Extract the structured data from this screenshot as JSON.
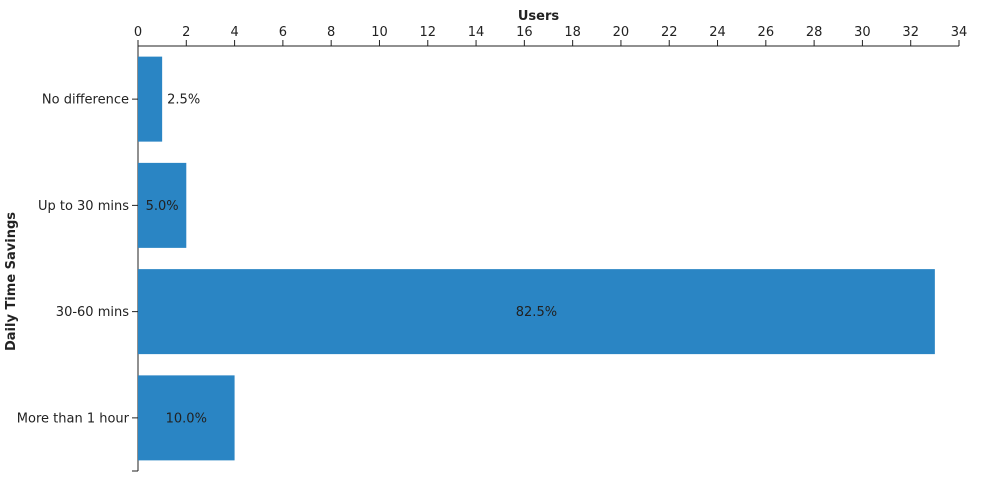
{
  "chart_data": {
    "type": "bar",
    "orientation": "horizontal",
    "categories": [
      "No difference",
      "Up to 30 mins",
      "30-60 mins",
      "More than 1 hour"
    ],
    "values": [
      1,
      2,
      33,
      4
    ],
    "data_labels": [
      "2.5%",
      "5.0%",
      "82.5%",
      "10.0%"
    ],
    "xlabel": "Users",
    "ylabel": "Daily Time Savings",
    "xlim": [
      0,
      34
    ],
    "x_ticks": [
      0,
      2,
      4,
      6,
      8,
      10,
      12,
      14,
      16,
      18,
      20,
      22,
      24,
      26,
      28,
      30,
      32,
      34
    ],
    "x_axis_position": "top",
    "grid": false,
    "bar_color": "#2a85c4",
    "text_color": "#222222"
  }
}
